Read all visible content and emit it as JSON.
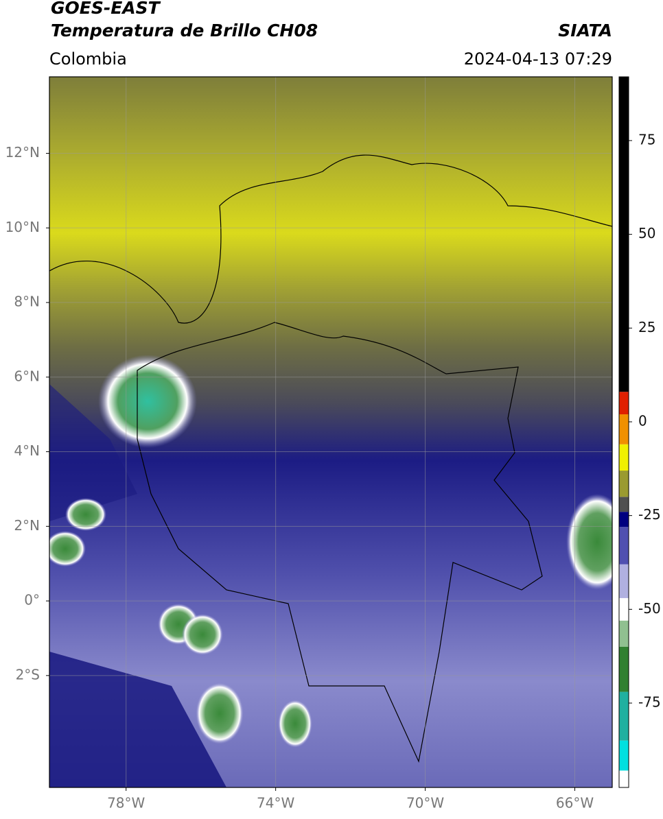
{
  "header": {
    "title": "GOES-EAST",
    "subtitle": "Temperatura de Brillo CH08",
    "source": "SIATA",
    "region": "Colombia",
    "timestamp": "2024-04-13 07:29"
  },
  "map": {
    "xlim": [
      -80.05,
      -65
    ],
    "ylim": [
      -5,
      14.05
    ],
    "xticks": [
      {
        "value": -78,
        "label": "78°W"
      },
      {
        "value": -74,
        "label": "74°W"
      },
      {
        "value": -70,
        "label": "70°W"
      },
      {
        "value": -66,
        "label": "66°W"
      }
    ],
    "yticks": [
      {
        "value": 12,
        "label": "12°N"
      },
      {
        "value": 10,
        "label": "10°N"
      },
      {
        "value": 8,
        "label": "8°N"
      },
      {
        "value": 6,
        "label": "6°N"
      },
      {
        "value": 4,
        "label": "4°N"
      },
      {
        "value": 2,
        "label": "2°N"
      },
      {
        "value": 0,
        "label": "0°"
      },
      {
        "value": -2,
        "label": "2°S"
      }
    ],
    "grid": true
  },
  "colorbar": {
    "lim": [
      -97.5,
      92
    ],
    "ticks": [
      75,
      50,
      25,
      0,
      -25,
      -50,
      -75
    ],
    "levels": [
      -97.5,
      -93,
      -85,
      -72,
      -60,
      -53,
      -47,
      -38,
      -28,
      -24,
      -20,
      -13,
      -6,
      2,
      8,
      92
    ],
    "colors": [
      "#ffffff",
      "#00e0e0",
      "#20b0a0",
      "#308030",
      "#90c090",
      "#ffffff",
      "#b0b0e0",
      "#5050b0",
      "#000080",
      "#505050",
      "#9a9a30",
      "#f0f000",
      "#f09000",
      "#e02000",
      "#000000"
    ]
  }
}
